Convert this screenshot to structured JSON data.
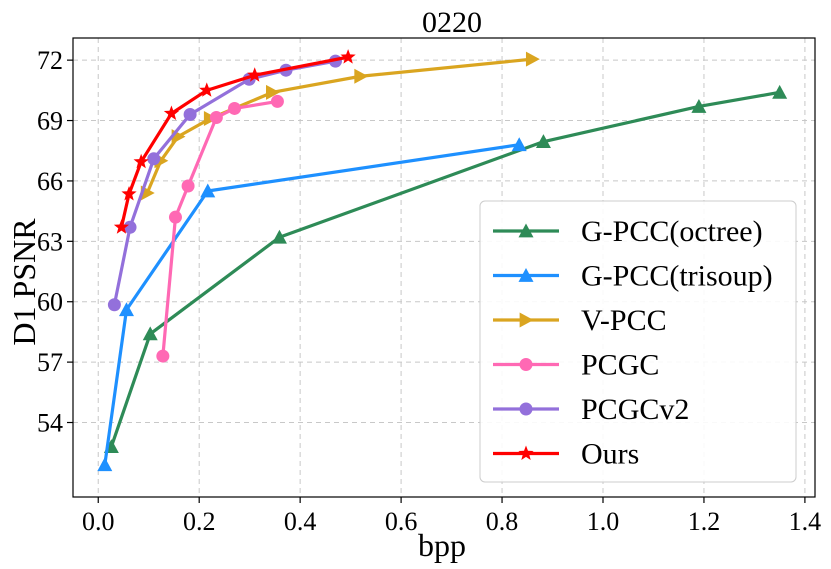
{
  "chart_data": {
    "type": "line",
    "title": "0220",
    "xlabel": "bpp",
    "ylabel": "D1 PSNR",
    "xlim": [
      -0.05,
      1.42
    ],
    "ylim": [
      50.3,
      73.1
    ],
    "xticks": [
      0.0,
      0.2,
      0.4,
      0.6,
      0.8,
      1.0,
      1.2,
      1.4
    ],
    "xtick_labels": [
      "0.0",
      "0.2",
      "0.4",
      "0.6",
      "0.8",
      "1.0",
      "1.2",
      "1.4"
    ],
    "yticks": [
      54,
      57,
      60,
      63,
      66,
      69,
      72
    ],
    "ytick_labels": [
      "54",
      "57",
      "60",
      "63",
      "66",
      "69",
      "72"
    ],
    "grid": true,
    "legend_position": "lower-right",
    "series": [
      {
        "name": "G-PCC(octree)",
        "color": "#2e8b57",
        "marker": "triangle-up",
        "x": [
          0.026,
          0.103,
          0.359,
          0.882,
          1.19,
          1.35
        ],
        "y": [
          52.8,
          58.4,
          63.2,
          67.95,
          69.7,
          70.4
        ]
      },
      {
        "name": "G-PCC(trisoup)",
        "color": "#1e90ff",
        "marker": "triangle-up",
        "x": [
          0.013,
          0.056,
          0.217,
          0.834
        ],
        "y": [
          51.9,
          59.6,
          65.5,
          67.8
        ]
      },
      {
        "name": "V-PCC",
        "color": "#daa520",
        "marker": "triangle-right",
        "x": [
          0.097,
          0.124,
          0.158,
          0.222,
          0.345,
          0.52,
          0.86
        ],
        "y": [
          65.4,
          67.0,
          68.2,
          69.1,
          70.4,
          71.2,
          72.05
        ]
      },
      {
        "name": "PCGC",
        "color": "#ff69b4",
        "marker": "circle",
        "x": [
          0.128,
          0.153,
          0.178,
          0.234,
          0.27,
          0.355
        ],
        "y": [
          57.3,
          64.2,
          65.75,
          69.15,
          69.6,
          69.95
        ]
      },
      {
        "name": "PCGCv2",
        "color": "#9370db",
        "marker": "circle",
        "x": [
          0.032,
          0.063,
          0.11,
          0.182,
          0.299,
          0.372,
          0.47
        ],
        "y": [
          59.85,
          63.7,
          67.1,
          69.3,
          71.05,
          71.5,
          71.95
        ]
      },
      {
        "name": "Ours",
        "color": "#ff0000",
        "marker": "star",
        "x": [
          0.046,
          0.061,
          0.085,
          0.145,
          0.215,
          0.31,
          0.495
        ],
        "y": [
          63.7,
          65.35,
          66.95,
          69.35,
          70.5,
          71.25,
          72.15
        ]
      }
    ]
  }
}
